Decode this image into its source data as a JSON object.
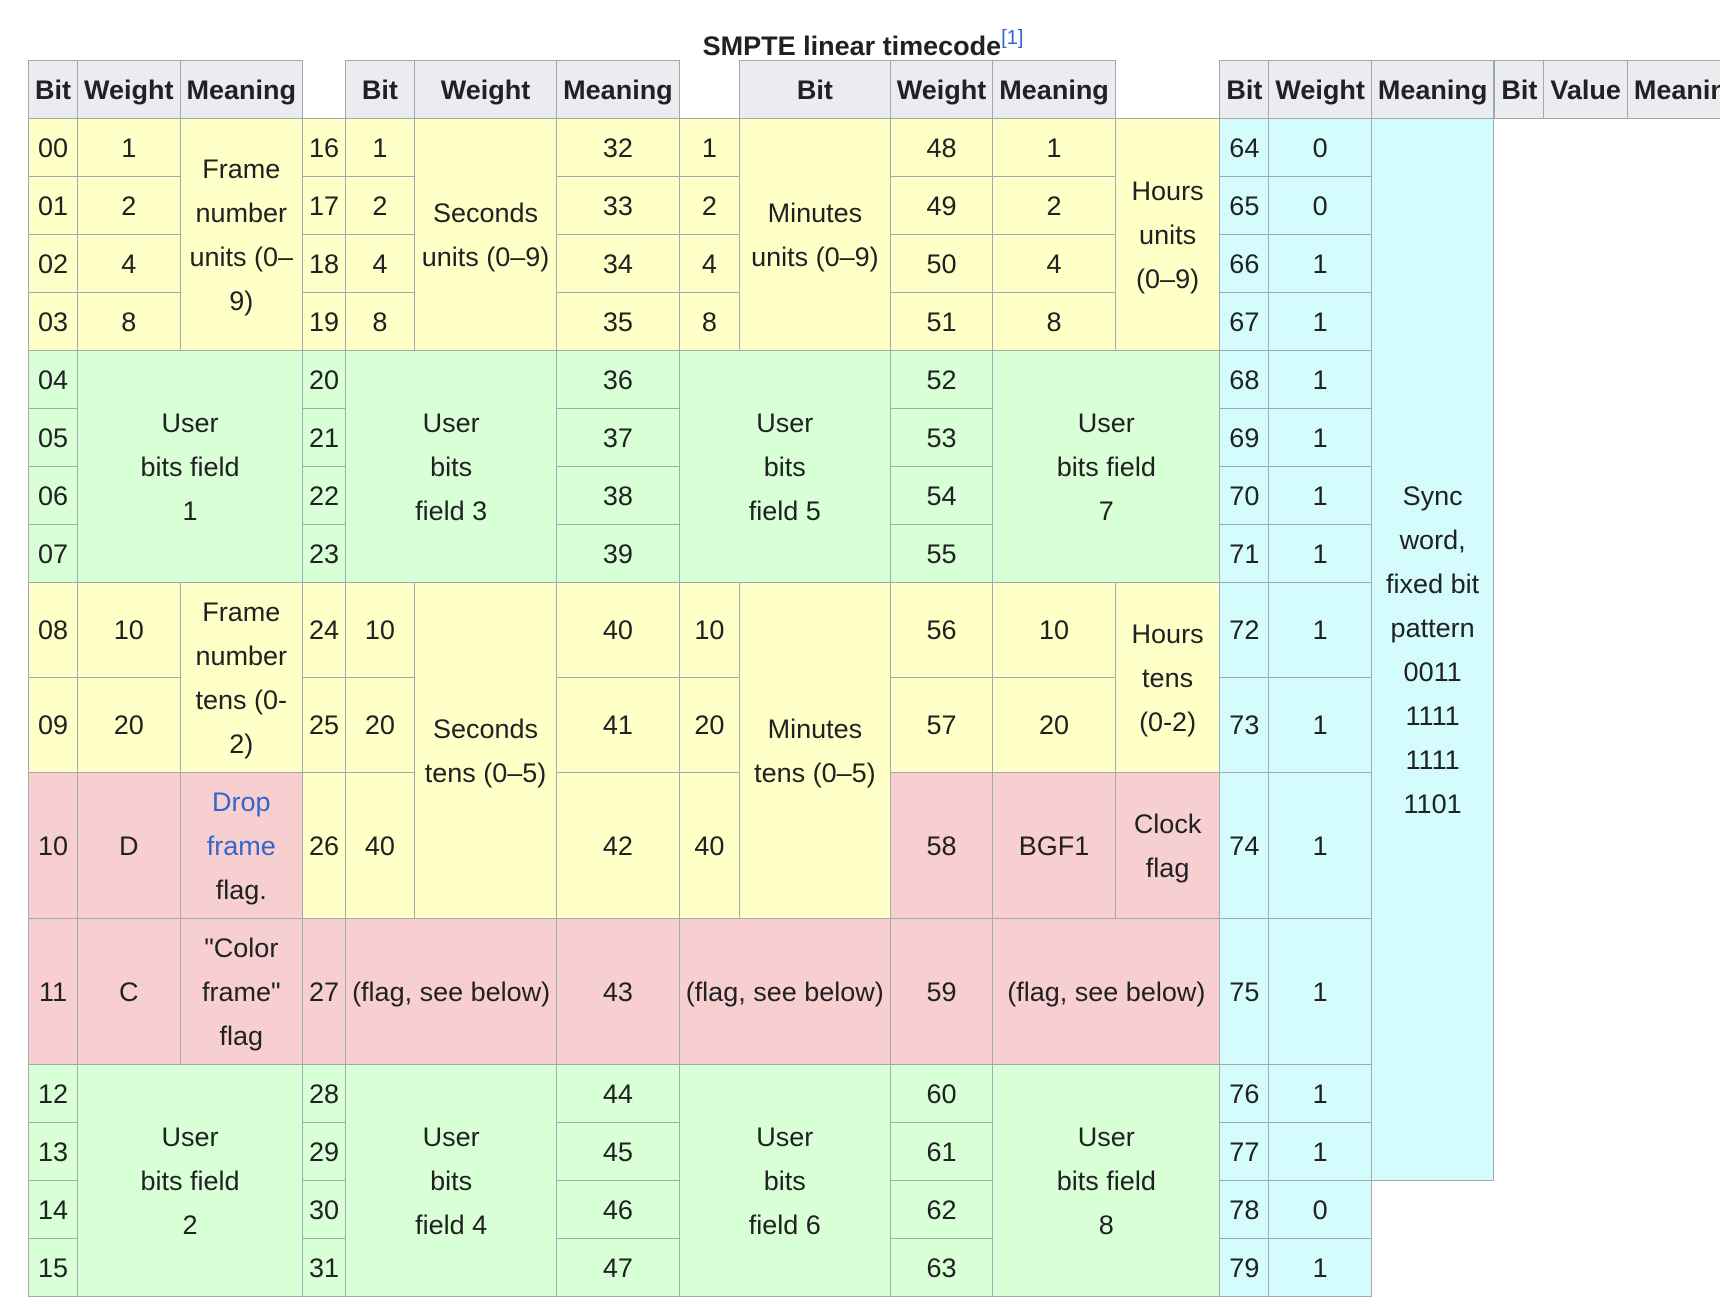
{
  "caption": {
    "title": "SMPTE linear timecode",
    "ref": "[1]"
  },
  "headers": {
    "group": [
      "Bit",
      "Weight",
      "Meaning"
    ],
    "sync": [
      "Bit",
      "Value",
      "Meaning"
    ]
  },
  "bits": [
    "00",
    "01",
    "02",
    "03",
    "04",
    "05",
    "06",
    "07",
    "08",
    "09",
    "10",
    "11",
    "12",
    "13",
    "14",
    "15",
    "16",
    "17",
    "18",
    "19",
    "20",
    "21",
    "22",
    "23",
    "24",
    "25",
    "26",
    "27",
    "28",
    "29",
    "30",
    "31",
    "32",
    "33",
    "34",
    "35",
    "36",
    "37",
    "38",
    "39",
    "40",
    "41",
    "42",
    "43",
    "44",
    "45",
    "46",
    "47",
    "48",
    "49",
    "50",
    "51",
    "52",
    "53",
    "54",
    "55",
    "56",
    "57",
    "58",
    "59",
    "60",
    "61",
    "62",
    "63",
    "64",
    "65",
    "66",
    "67",
    "68",
    "69",
    "70",
    "71",
    "72",
    "73",
    "74",
    "75",
    "76",
    "77",
    "78",
    "79"
  ],
  "weights": {
    "units": [
      "1",
      "2",
      "4",
      "8"
    ],
    "tens": [
      "10",
      "20",
      "40"
    ],
    "drop": "D",
    "color": "C",
    "bgf1": "BGF1"
  },
  "meanings": {
    "frame_units": "Frame number units (0–9)",
    "seconds_units": "Seconds units (0–9)",
    "minutes_units": "Minutes units (0–9)",
    "hours_units": "Hours units (0–9)",
    "frame_tens": "Frame number tens (0-2)",
    "seconds_tens": "Seconds tens (0–5)",
    "minutes_tens": "Minutes tens (0–5)",
    "hours_tens": "Hours tens (0-2)",
    "drop_frame_link": "Drop frame",
    "drop_frame_suffix": "flag.",
    "color_frame": "\"Color frame\" flag",
    "clock_flag": "Clock flag",
    "flag_see_below": "(flag, see below)",
    "user_bits": [
      "User bits field 1",
      "User bits field 2",
      "User bits field 3",
      "User bits field 4",
      "User bits field 5",
      "User bits field 6",
      "User bits field 7",
      "User bits field 8"
    ],
    "sync_word": "Sync word, fixed bit pattern 0011 1111 1111 1101"
  },
  "sync_values": [
    "0",
    "0",
    "1",
    "1",
    "1",
    "1",
    "1",
    "1",
    "1",
    "1",
    "1",
    "1",
    "1",
    "1",
    "0",
    "1"
  ],
  "colors": {
    "header": "#eaecf0",
    "timecode": "#ffffc8",
    "user_bits": "#d8ffd6",
    "flag": "#f8cfd0",
    "sync": "#d4fcfc",
    "link": "#3366cc"
  }
}
